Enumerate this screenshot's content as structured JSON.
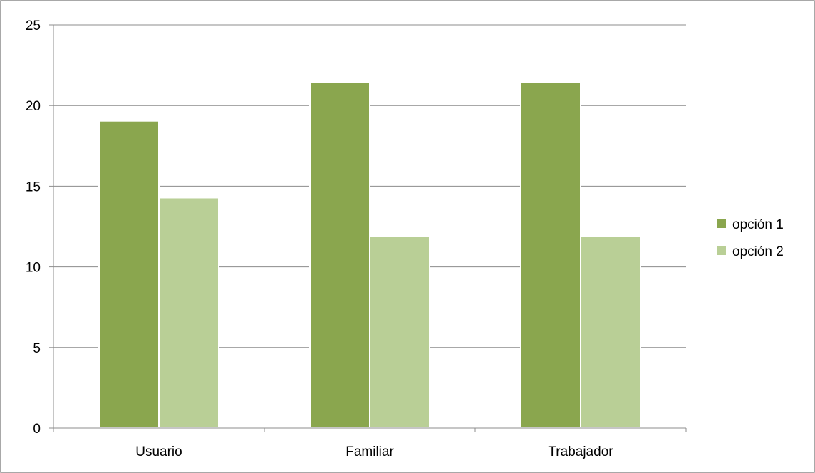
{
  "chart_data": {
    "type": "bar",
    "title": "",
    "xlabel": "",
    "ylabel": "",
    "categories": [
      "Usuario",
      "Familiar",
      "Trabajador"
    ],
    "series": [
      {
        "name": "opción 1",
        "color": "#8aa64e",
        "values": [
          19.05,
          21.43,
          21.43
        ]
      },
      {
        "name": "opción 2",
        "color": "#b9cf96",
        "values": [
          14.29,
          11.9,
          11.9
        ]
      }
    ],
    "ylim": [
      0,
      25
    ],
    "yticks": [
      0,
      5,
      10,
      15,
      20,
      25
    ],
    "grid": true,
    "legend_position": "right"
  }
}
